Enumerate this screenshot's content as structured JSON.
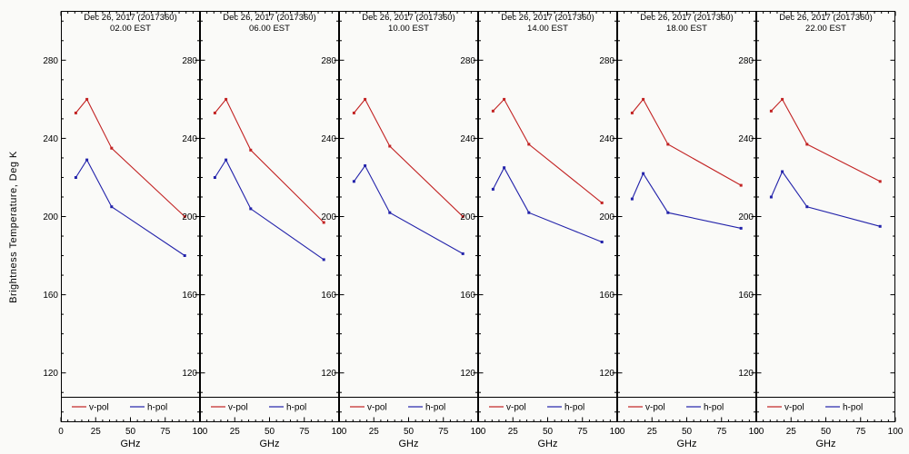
{
  "figure": {
    "ylabel": "Brightness Temperature, Deg K",
    "background": "#fafaf8",
    "frame_color": "#000000"
  },
  "chart_data": [
    {
      "type": "line",
      "title": "Dec 26, 2017 (2017360)",
      "subtitle": "02.00 EST",
      "xlabel": "GHz",
      "ylabel": "Brightness Temperature, Deg K",
      "xlim": [
        0,
        100
      ],
      "ylim": [
        95,
        305
      ],
      "xticks": [
        0,
        25,
        50,
        75,
        100
      ],
      "yticks": [
        120,
        160,
        200,
        240,
        280
      ],
      "x": [
        10.7,
        18.7,
        36.5,
        89.0
      ],
      "series": [
        {
          "name": "v-pol",
          "color": "#c22222",
          "values": [
            253,
            260,
            235,
            200
          ]
        },
        {
          "name": "h-pol",
          "color": "#2222aa",
          "values": [
            220,
            229,
            205,
            180
          ]
        }
      ],
      "legend_position": "bottom"
    },
    {
      "type": "line",
      "title": "Dec 26, 2017 (2017360)",
      "subtitle": "06.00 EST",
      "xlabel": "GHz",
      "ylabel": "Brightness Temperature, Deg K",
      "xlim": [
        0,
        100
      ],
      "ylim": [
        95,
        305
      ],
      "xticks": [
        0,
        25,
        50,
        75,
        100
      ],
      "yticks": [
        120,
        160,
        200,
        240,
        280
      ],
      "x": [
        10.7,
        18.7,
        36.5,
        89.0
      ],
      "series": [
        {
          "name": "v-pol",
          "color": "#c22222",
          "values": [
            253,
            260,
            234,
            197
          ]
        },
        {
          "name": "h-pol",
          "color": "#2222aa",
          "values": [
            220,
            229,
            204,
            178
          ]
        }
      ],
      "legend_position": "bottom"
    },
    {
      "type": "line",
      "title": "Dec 26, 2017 (2017360)",
      "subtitle": "10.00 EST",
      "xlabel": "GHz",
      "ylabel": "Brightness Temperature, Deg K",
      "xlim": [
        0,
        100
      ],
      "ylim": [
        95,
        305
      ],
      "xticks": [
        0,
        25,
        50,
        75,
        100
      ],
      "yticks": [
        120,
        160,
        200,
        240,
        280
      ],
      "x": [
        10.7,
        18.7,
        36.5,
        89.0
      ],
      "series": [
        {
          "name": "v-pol",
          "color": "#c22222",
          "values": [
            253,
            260,
            236,
            200
          ]
        },
        {
          "name": "h-pol",
          "color": "#2222aa",
          "values": [
            218,
            226,
            202,
            181
          ]
        }
      ],
      "legend_position": "bottom"
    },
    {
      "type": "line",
      "title": "Dec 26, 2017 (2017360)",
      "subtitle": "14.00 EST",
      "xlabel": "GHz",
      "ylabel": "Brightness Temperature, Deg K",
      "xlim": [
        0,
        100
      ],
      "ylim": [
        95,
        305
      ],
      "xticks": [
        0,
        25,
        50,
        75,
        100
      ],
      "yticks": [
        120,
        160,
        200,
        240,
        280
      ],
      "x": [
        10.7,
        18.7,
        36.5,
        89.0
      ],
      "series": [
        {
          "name": "v-pol",
          "color": "#c22222",
          "values": [
            254,
            260,
            237,
            207
          ]
        },
        {
          "name": "h-pol",
          "color": "#2222aa",
          "values": [
            214,
            225,
            202,
            187
          ]
        }
      ],
      "legend_position": "bottom"
    },
    {
      "type": "line",
      "title": "Dec 26, 2017 (2017360)",
      "subtitle": "18.00 EST",
      "xlabel": "GHz",
      "ylabel": "Brightness Temperature, Deg K",
      "xlim": [
        0,
        100
      ],
      "ylim": [
        95,
        305
      ],
      "xticks": [
        0,
        25,
        50,
        75,
        100
      ],
      "yticks": [
        120,
        160,
        200,
        240,
        280
      ],
      "x": [
        10.7,
        18.7,
        36.5,
        89.0
      ],
      "series": [
        {
          "name": "v-pol",
          "color": "#c22222",
          "values": [
            253,
            260,
            237,
            216
          ]
        },
        {
          "name": "h-pol",
          "color": "#2222aa",
          "values": [
            209,
            222,
            202,
            194
          ]
        }
      ],
      "legend_position": "bottom"
    },
    {
      "type": "line",
      "title": "Dec 26, 2017 (2017360)",
      "subtitle": "22.00 EST",
      "xlabel": "GHz",
      "ylabel": "Brightness Temperature, Deg K",
      "xlim": [
        0,
        100
      ],
      "ylim": [
        95,
        305
      ],
      "xticks": [
        0,
        25,
        50,
        75,
        100
      ],
      "yticks": [
        120,
        160,
        200,
        240,
        280
      ],
      "x": [
        10.7,
        18.7,
        36.5,
        89.0
      ],
      "series": [
        {
          "name": "v-pol",
          "color": "#c22222",
          "values": [
            254,
            260,
            237,
            218
          ]
        },
        {
          "name": "h-pol",
          "color": "#2222aa",
          "values": [
            210,
            223,
            205,
            195
          ]
        }
      ],
      "legend_position": "bottom"
    }
  ]
}
